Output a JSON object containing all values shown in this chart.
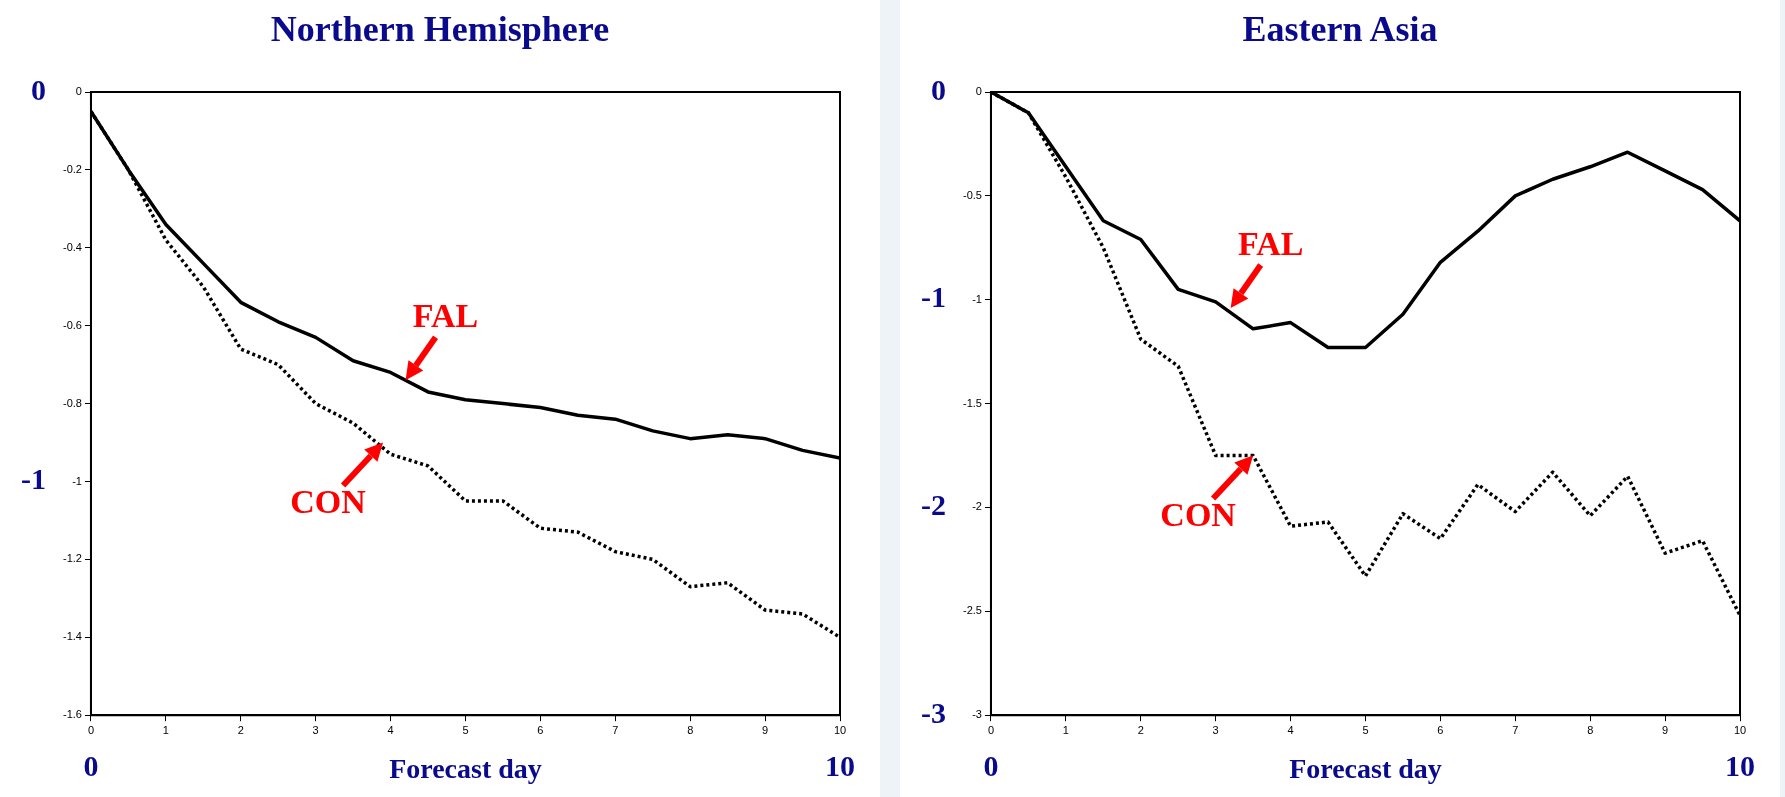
{
  "chart_data": [
    {
      "type": "line",
      "title": "Northern Hemisphere",
      "xlabel": "Forecast day",
      "x": [
        0,
        0.5,
        1,
        1.5,
        2,
        2.5,
        3,
        3.5,
        4,
        4.5,
        5,
        5.5,
        6,
        6.5,
        7,
        7.5,
        8,
        8.5,
        9,
        9.5,
        10
      ],
      "series": [
        {
          "color": "#000000",
          "line_style": "solid",
          "values": [
            -0.05,
            -0.2,
            -0.34,
            -0.44,
            -0.54,
            -0.59,
            -0.63,
            -0.69,
            -0.72,
            -0.77,
            -0.79,
            -0.8,
            -0.81,
            -0.83,
            -0.84,
            -0.87,
            -0.89,
            -0.88,
            -0.89,
            -0.92,
            -0.94
          ]
        },
        {
          "color": "#000000",
          "line_style": "dotted",
          "values": [
            -0.05,
            -0.2,
            -0.38,
            -0.5,
            -0.66,
            -0.7,
            -0.8,
            -0.85,
            -0.93,
            -0.96,
            -1.05,
            -1.05,
            -1.12,
            -1.13,
            -1.18,
            -1.2,
            -1.27,
            -1.26,
            -1.33,
            -1.34,
            -1.4
          ]
        }
      ],
      "xlim": [
        0,
        10
      ],
      "xticks": [
        0,
        1,
        2,
        3,
        4,
        5,
        6,
        7,
        8,
        9,
        10
      ],
      "ylim": [
        -1.6,
        0
      ],
      "yticks": [
        0,
        -0.2,
        -0.4,
        -0.6,
        -0.8,
        -1,
        -1.2,
        -1.4,
        -1.6
      ],
      "y2lim": [
        -1.6,
        0
      ],
      "y2ticks": [
        0,
        -1
      ],
      "annotations": [
        {
          "text": "FAL",
          "x": 4.2,
          "y": -0.74
        },
        {
          "text": "CON",
          "x": 3.9,
          "y": -0.9
        },
        "0",
        "10"
      ],
      "grid": false,
      "legend": false,
      "marker": "none"
    },
    {
      "type": "line",
      "title": "Eastern Asia",
      "xlabel": "Forecast day",
      "x": [
        0,
        0.5,
        1,
        1.5,
        2,
        2.5,
        3,
        3.5,
        4,
        4.5,
        5,
        5.5,
        6,
        6.5,
        7,
        7.5,
        8,
        8.5,
        9,
        9.5,
        10
      ],
      "series": [
        {
          "color": "#000000",
          "line_style": "solid",
          "values": [
            0,
            -0.1,
            -0.36,
            -0.62,
            -0.71,
            -0.95,
            -1.01,
            -1.14,
            -1.11,
            -1.23,
            -1.23,
            -1.07,
            -0.82,
            -0.67,
            -0.5,
            -0.42,
            -0.36,
            -0.29,
            -0.38,
            -0.47,
            -0.62
          ]
        },
        {
          "color": "#000000",
          "line_style": "dotted",
          "values": [
            0,
            -0.1,
            -0.41,
            -0.75,
            -1.19,
            -1.32,
            -1.75,
            -1.75,
            -2.09,
            -2.07,
            -2.33,
            -2.03,
            -2.15,
            -1.89,
            -2.02,
            -1.83,
            -2.04,
            -1.85,
            -2.22,
            -2.16,
            -2.52
          ]
        }
      ],
      "xlim": [
        0,
        10
      ],
      "xticks": [
        0,
        1,
        2,
        3,
        4,
        5,
        6,
        7,
        8,
        9,
        10
      ],
      "ylim": [
        -3,
        0
      ],
      "yticks": [
        0,
        -0.5,
        -1,
        -1.5,
        -2,
        -2.5,
        -3
      ],
      "y2lim": [
        -3,
        0
      ],
      "y2ticks": [
        0,
        -1,
        -2,
        -3
      ],
      "annotations": [
        {
          "text": "FAL",
          "x": 3.2,
          "y": -1.04
        },
        {
          "text": "CON",
          "x": 3.5,
          "y": -1.75
        },
        "0",
        "10"
      ],
      "grid": false,
      "legend": false,
      "marker": "none"
    }
  ]
}
